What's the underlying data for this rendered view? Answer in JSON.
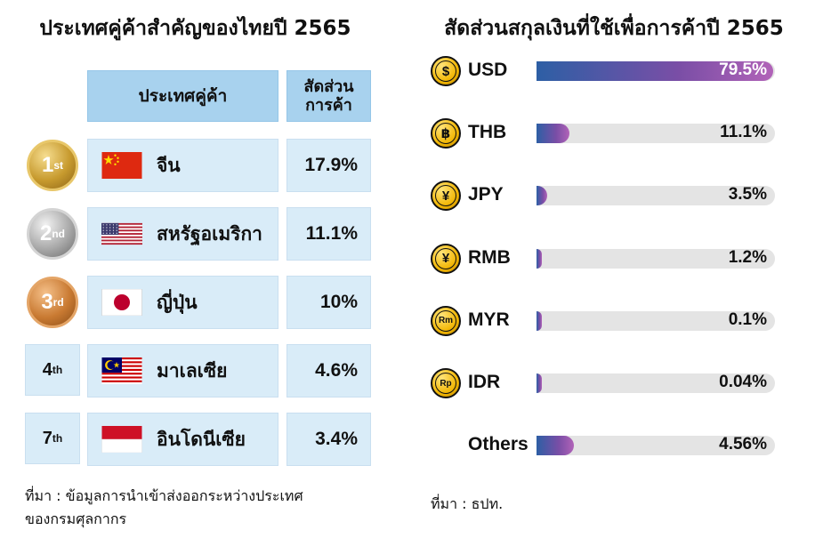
{
  "left": {
    "title": "ประเทศคู่ค้าสำคัญของไทยปี 2565",
    "header_country": "ประเทศคู่ค้า",
    "header_share_line1": "สัดส่วน",
    "header_share_line2": "การค้า",
    "rows": [
      {
        "rank": "1",
        "suffix": "st",
        "medal": "gold",
        "country": "จีน",
        "share": "17.9%",
        "flag": "china-flag-icon"
      },
      {
        "rank": "2",
        "suffix": "nd",
        "medal": "silver",
        "country": "สหรัฐอเมริกา",
        "share": "11.1%",
        "flag": "usa-flag-icon"
      },
      {
        "rank": "3",
        "suffix": "rd",
        "medal": "bronze",
        "country": "ญี่ปุ่น",
        "share": "10%",
        "flag": "japan-flag-icon"
      },
      {
        "rank": "4",
        "suffix": "th",
        "medal": "none",
        "country": "มาเลเซีย",
        "share": "4.6%",
        "flag": "malaysia-flag-icon"
      },
      {
        "rank": "7",
        "suffix": "th",
        "medal": "none",
        "country": "อินโดนีเซีย",
        "share": "3.4%",
        "flag": "indonesia-flag-icon"
      }
    ],
    "source_line1": "ที่มา : ข้อมูลการนำเข้าส่งออกระหว่างประเทศ",
    "source_line2": "ของกรมศุลกากร"
  },
  "chart_data": {
    "type": "bar",
    "orientation": "horizontal",
    "title": "สัดส่วนสกุลเงินที่ใช้เพื่อการค้าปี 2565",
    "categories": [
      "USD",
      "THB",
      "JPY",
      "RMB",
      "MYR",
      "IDR",
      "Others"
    ],
    "values": [
      79.5,
      11.1,
      3.5,
      1.2,
      0.1,
      0.04,
      4.56
    ],
    "labels": [
      "79.5%",
      "11.1%",
      "3.5%",
      "1.2%",
      "0.1%",
      "0.04%",
      "4.56%"
    ],
    "icons": [
      "dollar-coin-icon",
      "baht-coin-icon",
      "yen-coin-icon",
      "yuan-coin-icon",
      "ringgit-coin-icon",
      "rupiah-coin-icon",
      ""
    ],
    "coin_symbols": [
      "$",
      "฿",
      "¥",
      "¥",
      "Rm",
      "Rp",
      ""
    ],
    "xlim": [
      0,
      80
    ],
    "source": "ที่มา : ธปท."
  },
  "colors": {
    "bar_start": "#2d5fa5",
    "bar_end": "#b163b8",
    "track": "#e4e4e4",
    "cell": "#d9ecf8",
    "header": "#a8d2ee"
  }
}
